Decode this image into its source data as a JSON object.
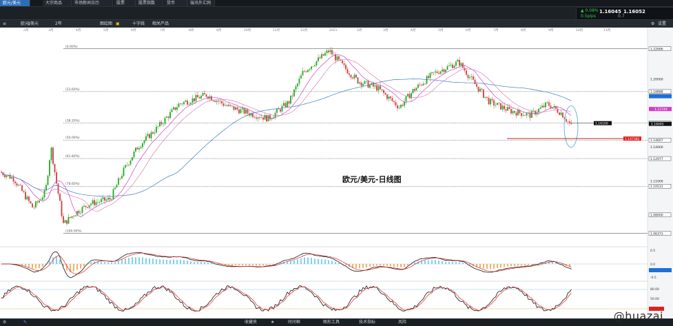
{
  "tabs": [
    {
      "label": "欧元/美元",
      "active": true
    },
    {
      "label": "大宗商品",
      "active": false
    },
    {
      "label": "市场新闻日历",
      "active": false
    },
    {
      "label": "股票",
      "active": false
    },
    {
      "label": "股票指数",
      "active": false
    },
    {
      "label": "货币",
      "active": false
    },
    {
      "label": "瑞讯外汇网",
      "active": false
    }
  ],
  "quote": {
    "change_pct": "▲ 0.08%",
    "change_abs": "0.5pips",
    "bid": "1.16045",
    "spread": "0.7",
    "ask": "1.16052"
  },
  "toolbar": {
    "symbol": "欧元/美元",
    "timeframe": "1天",
    "period": "2年",
    "draw": "图绘图",
    "indicator": "指标",
    "layout": "十字线",
    "related": "相关产品",
    "settings": "设置"
  },
  "chart_data": {
    "type": "line",
    "title": "欧元/美元-日线图",
    "months": [
      "2月",
      "3月",
      "4月",
      "5月",
      "6月",
      "7月",
      "8月",
      "9月",
      "10月",
      "11月",
      "12月",
      "2021",
      "2月",
      "3月",
      "4月",
      "5月",
      "6月",
      "7月",
      "8月",
      "9月",
      "10月",
      "11月"
    ],
    "fib_levels": [
      {
        "label": "(0.00%)",
        "value": 1.22666
      },
      {
        "label": "(23.60%)",
        "value": 1.18888
      },
      {
        "label": "(38.20%)",
        "value": 1.161
      },
      {
        "label": "(50.00%)",
        "value": 1.14607
      },
      {
        "label": "(61.80%)",
        "value": 1.12977
      },
      {
        "label": "(78.60%)",
        "value": 1.10531
      },
      {
        "label": "(100.00%)",
        "value": 1.06373
      }
    ],
    "price_labels": [
      "1.22666",
      "1.20000",
      "1.18888",
      "1.16100",
      "1.14607",
      "1.14000",
      "1.12977",
      "1.11000",
      "1.10531",
      "1.08000",
      "1.06373"
    ],
    "current_price": "1.16045",
    "markers": [
      "1.16100",
      "1.15749",
      "1.147382"
    ],
    "osc1_labels": [
      "0.5",
      "0.0",
      "-0.5"
    ],
    "osc2_labels": [
      "80.00",
      "50.00",
      "20.00"
    ]
  },
  "bottom": {
    "items": [
      "收藏夹",
      "时间框",
      "图形工具",
      "技术指标",
      "风险"
    ]
  },
  "watermark": "@huazai",
  "colors": {
    "accent": "#2d6db6",
    "bull": "#1ea81e",
    "bear": "#d23b3b",
    "ma_pink": "#d03fc5",
    "ma_blue": "#3a7ec8",
    "price_up": "#2ecc40"
  }
}
